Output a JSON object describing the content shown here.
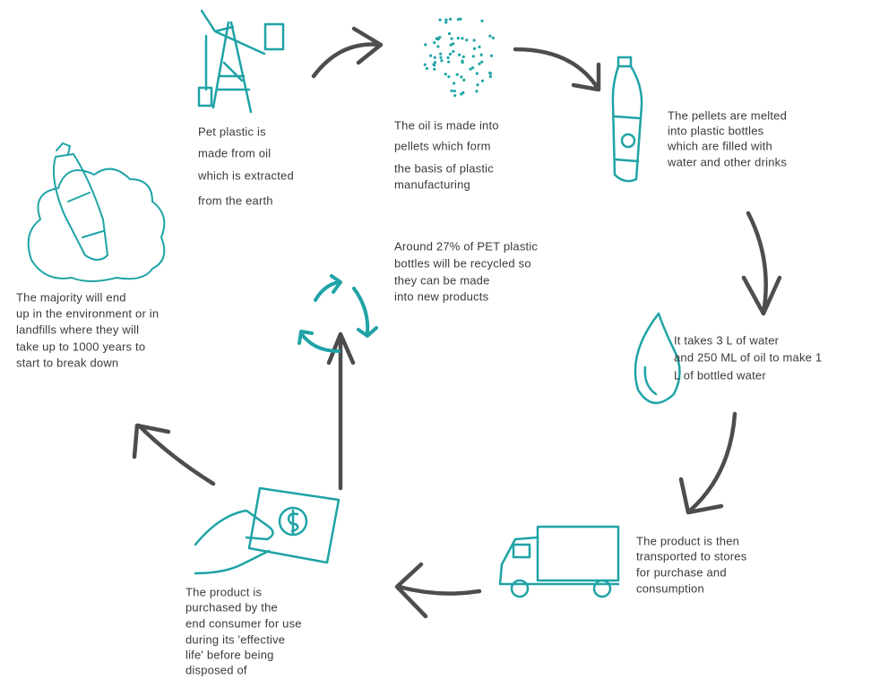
{
  "steps": [
    {
      "lines": [
        "Pet plastic is",
        "made from oil",
        "which is extracted",
        "from the earth"
      ]
    },
    {
      "lines": [
        "The oil is made into",
        "pellets which form",
        "the basis of plastic",
        "manufacturing"
      ]
    },
    {
      "lines": [
        "The pellets are melted",
        "into plastic bottles",
        "which are filled with",
        "water and other drinks"
      ]
    },
    {
      "lines": [
        "It takes 3 L of water",
        "and 250 ML of oil to make 1",
        "L of bottled water"
      ]
    },
    {
      "lines": [
        "The product is then",
        "transported to stores",
        "for purchase and",
        "consumption"
      ]
    },
    {
      "lines": [
        "The product is",
        "purchased by the",
        "end consumer for use",
        "during its 'effective",
        "life' before being",
        "disposed of"
      ]
    },
    {
      "lines": [
        "Around 27% of PET plastic",
        "bottles will be recycled so",
        "they can be made",
        "into new products"
      ]
    },
    {
      "lines": [
        "The majority will end",
        "up in the environment or in",
        "landfills where they will",
        "take up to 1000 years to",
        "start to break down"
      ]
    }
  ]
}
